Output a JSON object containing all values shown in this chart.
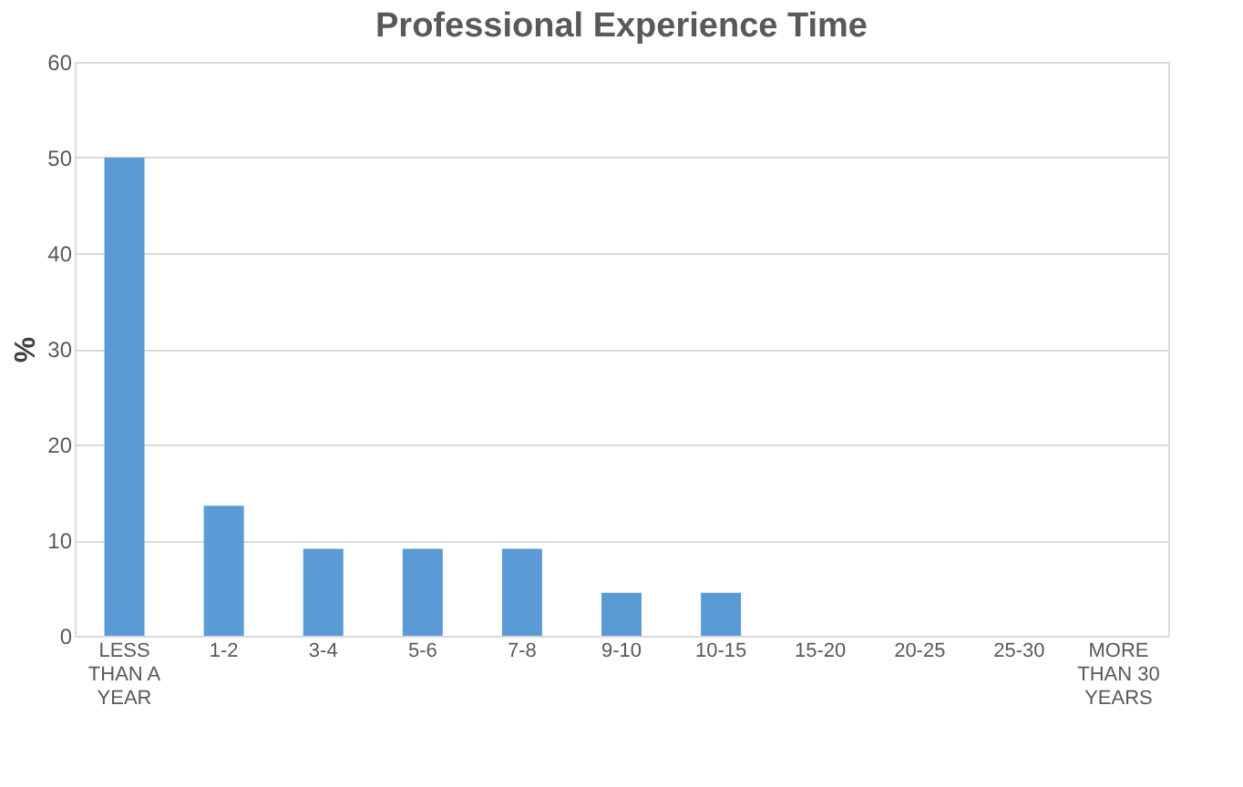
{
  "chart_data": {
    "type": "bar",
    "title": "Professional Experience Time",
    "ylabel": "%",
    "categories": [
      "LESS THAN A YEAR",
      "1-2",
      "3-4",
      "5-6",
      "7-8",
      "9-10",
      "10-15",
      "15-20",
      "20-25",
      "25-30",
      "MORE THAN 30 YEARS"
    ],
    "values": [
      50,
      13.6,
      9.1,
      9.1,
      9.1,
      4.5,
      4.5,
      0,
      0,
      0,
      0
    ],
    "color": "#5b9bd5",
    "ylim": [
      0,
      60
    ],
    "yticks": [
      0,
      10,
      20,
      30,
      40,
      50,
      60
    ],
    "grid": "y"
  }
}
